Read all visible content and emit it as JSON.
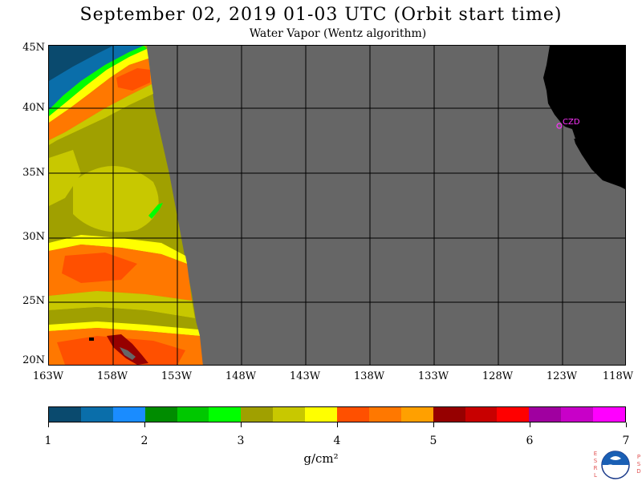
{
  "header": {
    "title": "September 02, 2019  01-03 UTC  (Orbit start time)",
    "subtitle": "Water Vapor (Wentz algorithm)"
  },
  "map": {
    "lat_labels": [
      "45N",
      "40N",
      "35N",
      "30N",
      "25N",
      "20N"
    ],
    "lon_labels": [
      "163W",
      "158W",
      "153W",
      "148W",
      "143W",
      "138W",
      "133W",
      "128W",
      "123W",
      "118W"
    ],
    "station_label": "CZD",
    "colors": {
      "no_data": "#666666",
      "land": "#000000",
      "station": "#ff33ff",
      "grid": "#000000"
    }
  },
  "colorbar": {
    "colors": [
      "#0a4a6e",
      "#0a6eaa",
      "#1a8cff",
      "#008c00",
      "#00c800",
      "#00ff00",
      "#a0a000",
      "#c8c800",
      "#ffff00",
      "#ff5000",
      "#ff7800",
      "#ffa000",
      "#960000",
      "#c80000",
      "#ff0000",
      "#a000a0",
      "#c800c8",
      "#ff00ff"
    ],
    "tick_labels": [
      "1",
      "2",
      "3",
      "4",
      "5",
      "6",
      "7"
    ],
    "unit": "g/cm²"
  },
  "logo": {
    "left_text": "ESRL",
    "right_text": "PSD",
    "name": "noaa-logo-icon"
  }
}
